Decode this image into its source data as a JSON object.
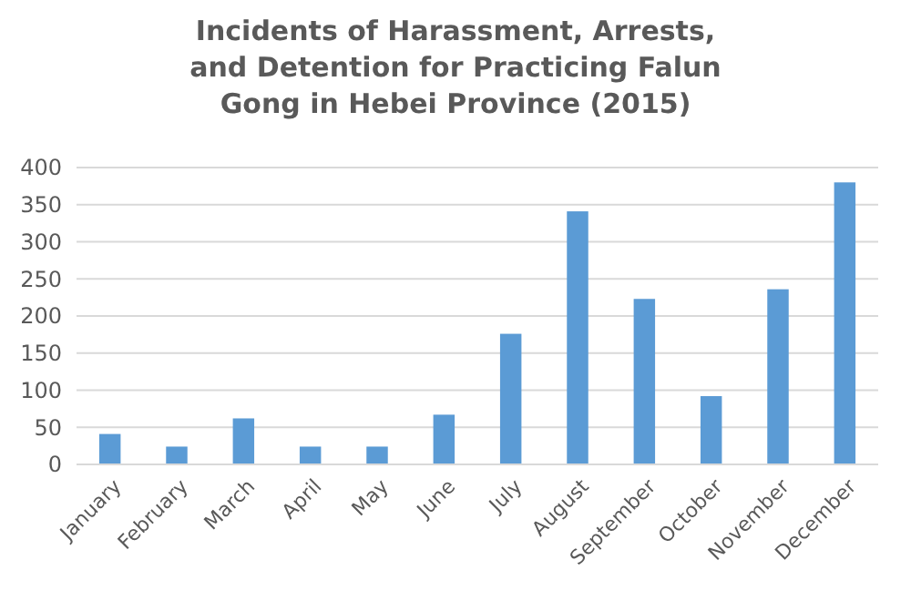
{
  "chart_data": {
    "type": "bar",
    "title": "Incidents of Harassment, Arrests, and Detention for Practicing Falun Gong in Hebei Province (2015)",
    "categories": [
      "January",
      "February",
      "March",
      "April",
      "May",
      "June",
      "July",
      "August",
      "September",
      "October",
      "November",
      "December"
    ],
    "values": [
      41,
      24,
      62,
      24,
      24,
      67,
      176,
      341,
      223,
      92,
      236,
      380
    ],
    "color": "#5b9bd5",
    "ylim": [
      0,
      400
    ],
    "yticks": [
      0,
      50,
      100,
      150,
      200,
      250,
      300,
      350,
      400
    ],
    "grid": "y"
  }
}
